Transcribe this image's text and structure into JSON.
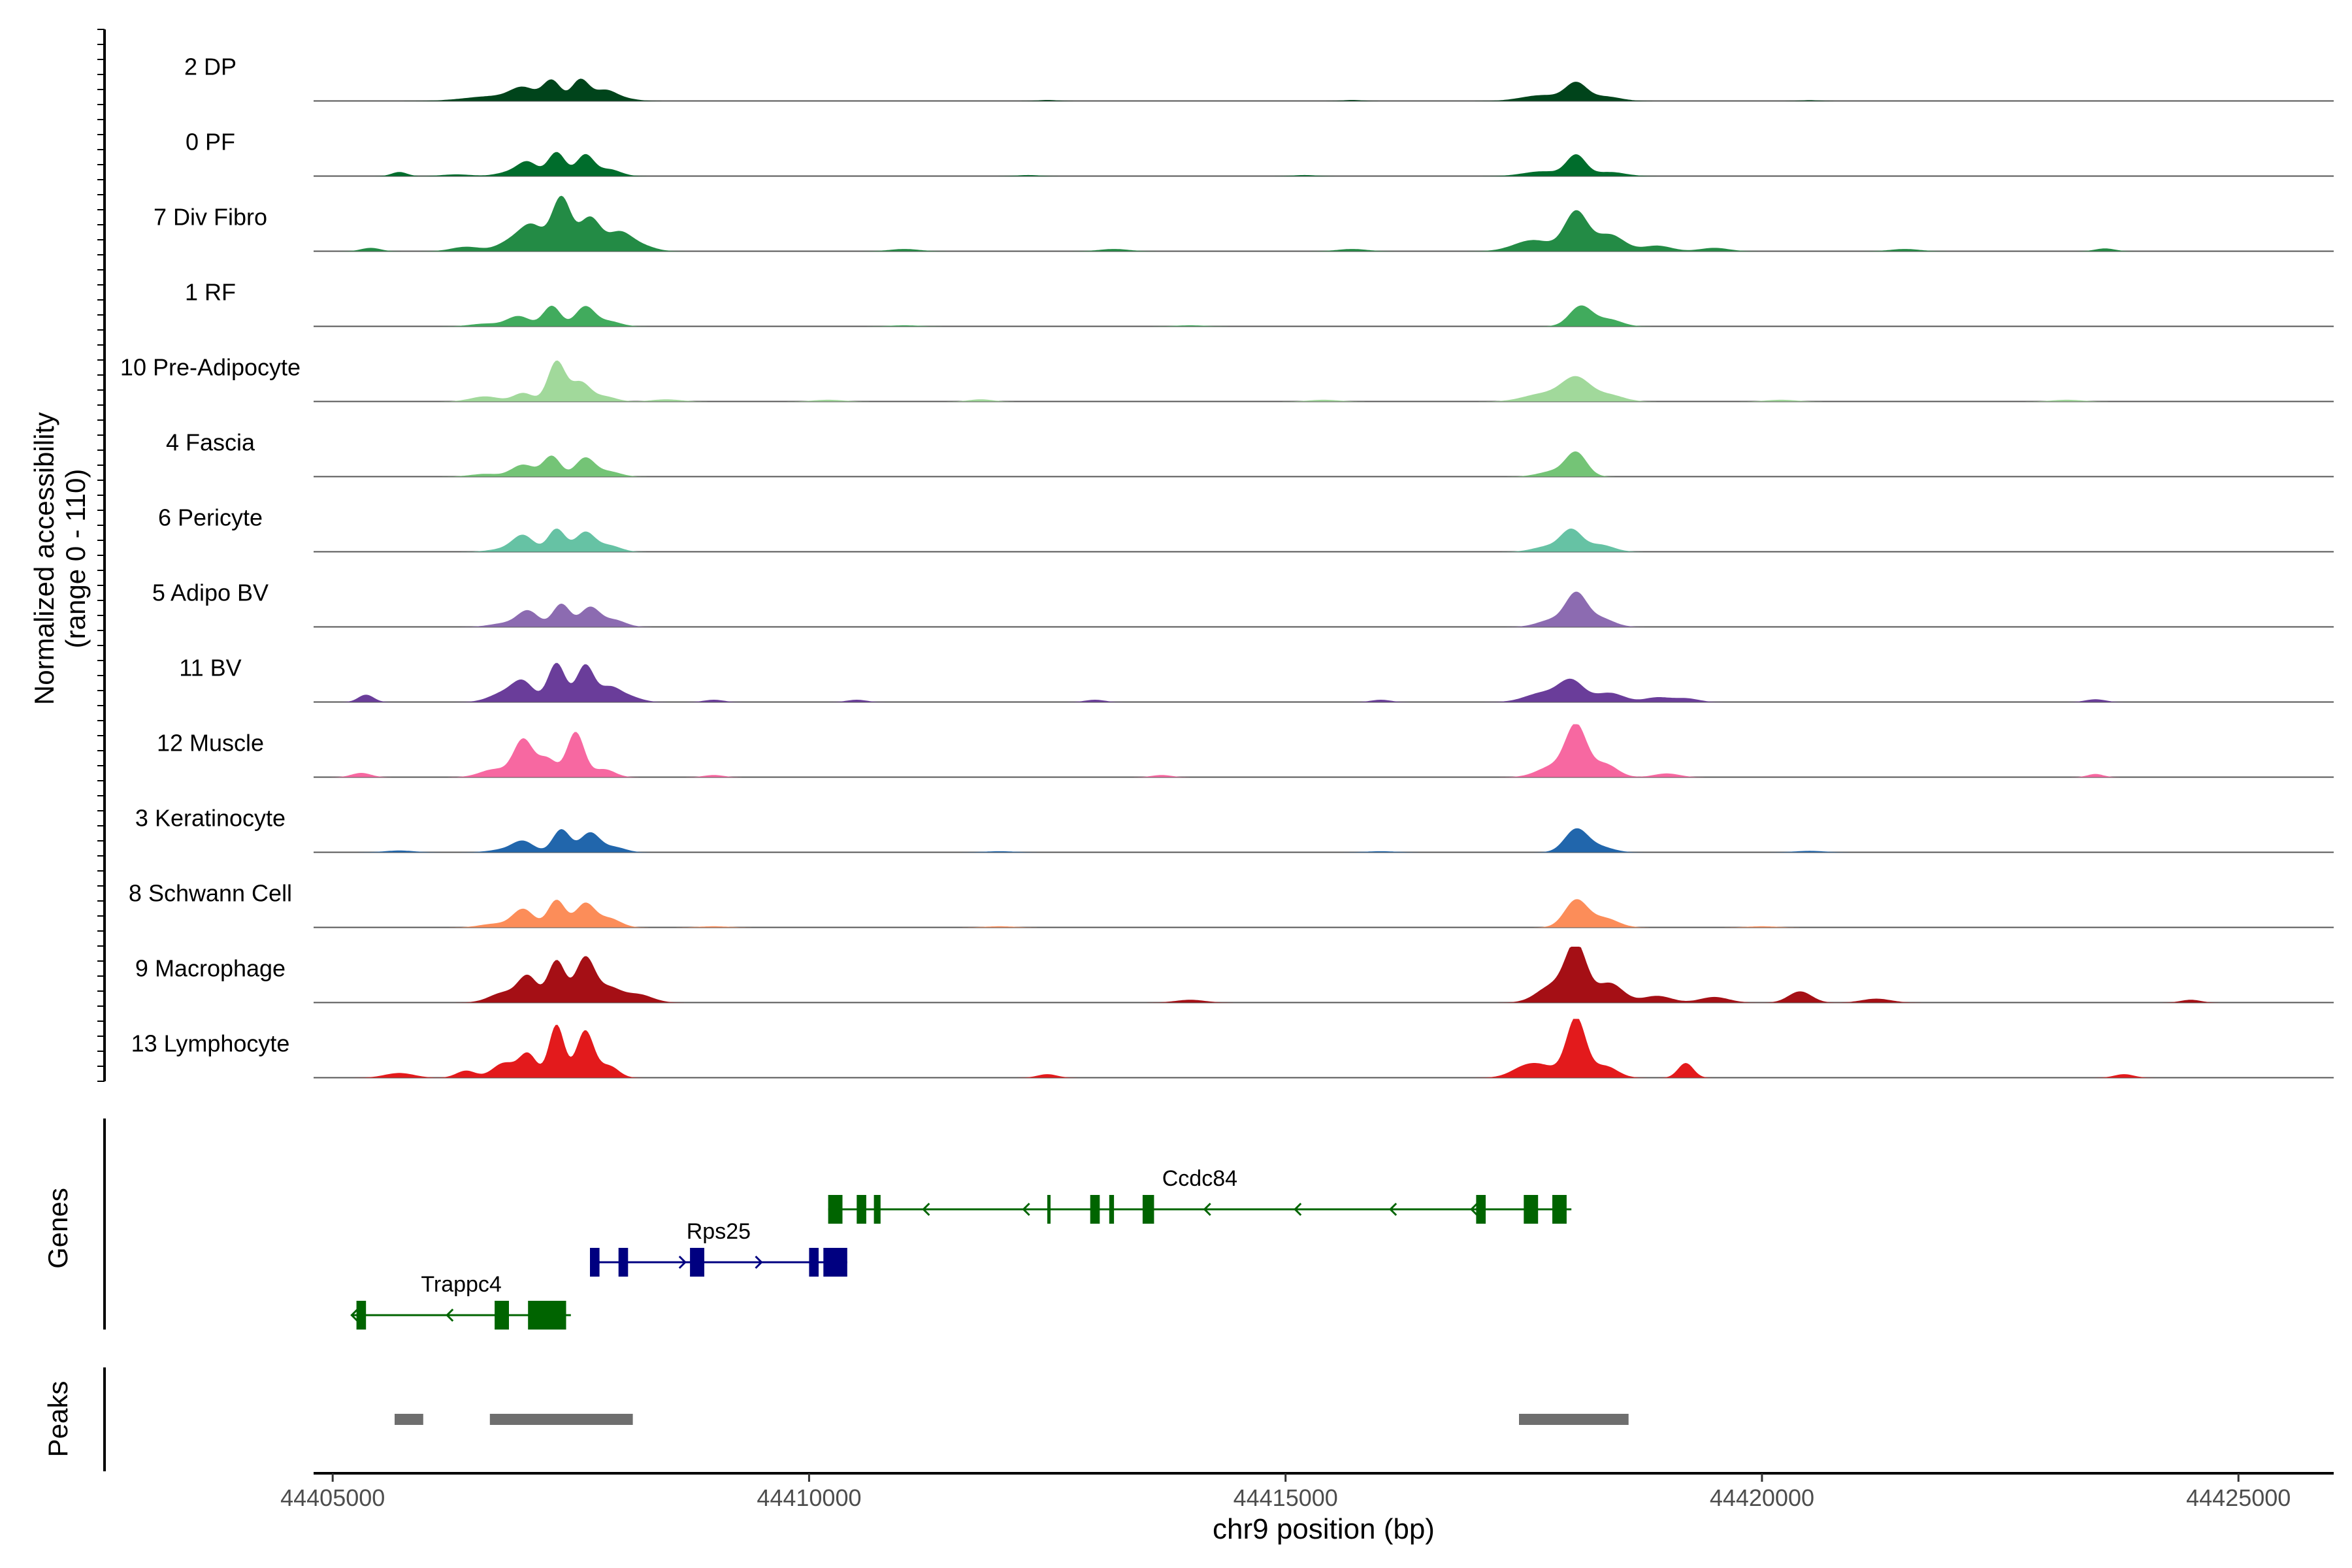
{
  "chart_data": {
    "type": "area",
    "title": "",
    "chromosome": "chr9",
    "xlabel": "chr9 position (bp)",
    "xlim": [
      44404800,
      44426000
    ],
    "xticks": [
      44405000,
      44410000,
      44415000,
      44420000,
      44425000
    ],
    "tick_labels": [
      "44405000",
      "44410000",
      "44415000",
      "44420000",
      "44425000"
    ],
    "ylabel_line1": "Normalized accessibility",
    "ylabel_line2": "(range 0 - 110)",
    "ylim": [
      0,
      110
    ],
    "genes_label": "Genes",
    "peaks_label": "Peaks",
    "series": [
      {
        "name": "2 DP",
        "color": "#00441b",
        "scale": 0.55,
        "peaks": [
          [
            44406700,
            0.15,
            300
          ],
          [
            44407000,
            0.35,
            130
          ],
          [
            44407300,
            0.62,
            90
          ],
          [
            44407600,
            0.66,
            90
          ],
          [
            44407850,
            0.28,
            110
          ],
          [
            44408000,
            0.1,
            150
          ],
          [
            44418050,
            0.52,
            110
          ],
          [
            44417700,
            0.18,
            220
          ],
          [
            44418350,
            0.14,
            160
          ],
          [
            44412500,
            0.03,
            100
          ],
          [
            44415700,
            0.03,
            100
          ],
          [
            44420500,
            0.025,
            100
          ]
        ]
      },
      {
        "name": "0 PF",
        "color": "#006d2c",
        "scale": 0.58,
        "peaks": [
          [
            44405700,
            0.12,
            80
          ],
          [
            44406300,
            0.05,
            150
          ],
          [
            44406900,
            0.14,
            150
          ],
          [
            44407050,
            0.35,
            100
          ],
          [
            44407350,
            0.7,
            90
          ],
          [
            44407650,
            0.62,
            90
          ],
          [
            44407900,
            0.2,
            120
          ],
          [
            44418050,
            0.6,
            100
          ],
          [
            44417700,
            0.14,
            200
          ],
          [
            44418400,
            0.12,
            160
          ],
          [
            44412300,
            0.03,
            120
          ],
          [
            44415200,
            0.03,
            120
          ]
        ]
      },
      {
        "name": "7 Div Fibro",
        "color": "#238b45",
        "scale": 0.95,
        "peaks": [
          [
            44405400,
            0.06,
            100
          ],
          [
            44406400,
            0.08,
            150
          ],
          [
            44406900,
            0.2,
            150
          ],
          [
            44407100,
            0.4,
            120
          ],
          [
            44407400,
            0.96,
            100
          ],
          [
            44407700,
            0.6,
            110
          ],
          [
            44408000,
            0.3,
            120
          ],
          [
            44408200,
            0.12,
            150
          ],
          [
            44418050,
            0.7,
            120
          ],
          [
            44417600,
            0.2,
            200
          ],
          [
            44418400,
            0.3,
            150
          ],
          [
            44418900,
            0.1,
            150
          ],
          [
            44419500,
            0.06,
            150
          ],
          [
            44411000,
            0.04,
            150
          ],
          [
            44413200,
            0.04,
            150
          ],
          [
            44415700,
            0.04,
            150
          ],
          [
            44421500,
            0.04,
            150
          ],
          [
            44423600,
            0.05,
            100
          ]
        ]
      },
      {
        "name": "1 RF",
        "color": "#41ab5d",
        "scale": 0.58,
        "peaks": [
          [
            44406600,
            0.08,
            150
          ],
          [
            44406950,
            0.3,
            120
          ],
          [
            44407300,
            0.6,
            90
          ],
          [
            44407650,
            0.58,
            100
          ],
          [
            44407900,
            0.15,
            120
          ],
          [
            44418100,
            0.6,
            120
          ],
          [
            44418400,
            0.2,
            130
          ],
          [
            44411000,
            0.03,
            150
          ],
          [
            44414000,
            0.03,
            150
          ]
        ]
      },
      {
        "name": "10 Pre-Adipocyte",
        "color": "#a1d99b",
        "scale": 0.72,
        "peaks": [
          [
            44406600,
            0.12,
            150
          ],
          [
            44407000,
            0.2,
            100
          ],
          [
            44407350,
            0.95,
            90
          ],
          [
            44407600,
            0.45,
            100
          ],
          [
            44407850,
            0.12,
            120
          ],
          [
            44408500,
            0.05,
            150
          ],
          [
            44411800,
            0.05,
            120
          ],
          [
            44418050,
            0.55,
            150
          ],
          [
            44417700,
            0.18,
            200
          ],
          [
            44418400,
            0.15,
            150
          ],
          [
            44410200,
            0.04,
            150
          ],
          [
            44415400,
            0.04,
            150
          ],
          [
            44420200,
            0.04,
            150
          ],
          [
            44423200,
            0.04,
            150
          ]
        ]
      },
      {
        "name": "4 Fascia",
        "color": "#74c476",
        "scale": 0.58,
        "peaks": [
          [
            44406600,
            0.08,
            150
          ],
          [
            44407000,
            0.35,
            120
          ],
          [
            44407300,
            0.6,
            90
          ],
          [
            44407650,
            0.55,
            100
          ],
          [
            44407900,
            0.15,
            120
          ],
          [
            44418050,
            0.7,
            110
          ],
          [
            44417800,
            0.15,
            150
          ]
        ]
      },
      {
        "name": "6 Pericyte",
        "color": "#66c2a4",
        "scale": 0.6,
        "peaks": [
          [
            44406800,
            0.08,
            150
          ],
          [
            44407000,
            0.45,
            110
          ],
          [
            44407350,
            0.65,
            90
          ],
          [
            44407650,
            0.55,
            100
          ],
          [
            44407900,
            0.18,
            120
          ],
          [
            44418000,
            0.6,
            110
          ],
          [
            44418300,
            0.2,
            140
          ],
          [
            44417750,
            0.15,
            150
          ]
        ]
      },
      {
        "name": "5 Adipo BV",
        "color": "#8c6bb1",
        "scale": 0.6,
        "peaks": [
          [
            44406800,
            0.1,
            150
          ],
          [
            44407050,
            0.45,
            110
          ],
          [
            44407400,
            0.65,
            90
          ],
          [
            44407700,
            0.55,
            100
          ],
          [
            44407950,
            0.2,
            120
          ],
          [
            44418050,
            0.9,
            110
          ],
          [
            44418300,
            0.25,
            140
          ],
          [
            44417800,
            0.2,
            150
          ]
        ]
      },
      {
        "name": "11 BV",
        "color": "#6a3d9a",
        "scale": 0.78,
        "peaks": [
          [
            44405350,
            0.16,
            80
          ],
          [
            44406800,
            0.2,
            150
          ],
          [
            44407000,
            0.4,
            110
          ],
          [
            44407350,
            0.85,
            90
          ],
          [
            44407650,
            0.8,
            90
          ],
          [
            44407900,
            0.3,
            110
          ],
          [
            44408100,
            0.12,
            130
          ],
          [
            44418000,
            0.45,
            130
          ],
          [
            44417700,
            0.2,
            180
          ],
          [
            44418400,
            0.2,
            150
          ],
          [
            44418900,
            0.1,
            130
          ],
          [
            44419200,
            0.08,
            130
          ],
          [
            44409000,
            0.05,
            100
          ],
          [
            44410500,
            0.05,
            100
          ],
          [
            44413000,
            0.05,
            100
          ],
          [
            44416000,
            0.05,
            100
          ],
          [
            44423500,
            0.06,
            100
          ]
        ]
      },
      {
        "name": "12 Muscle",
        "color": "#f768a1",
        "scale": 0.9,
        "peaks": [
          [
            44405300,
            0.08,
            100
          ],
          [
            44406700,
            0.15,
            150
          ],
          [
            44407000,
            0.7,
            100
          ],
          [
            44407250,
            0.35,
            100
          ],
          [
            44407550,
            0.85,
            90
          ],
          [
            44407850,
            0.15,
            110
          ],
          [
            44418050,
            0.95,
            110
          ],
          [
            44417800,
            0.2,
            160
          ],
          [
            44418350,
            0.25,
            130
          ],
          [
            44419000,
            0.07,
            130
          ],
          [
            44409000,
            0.04,
            100
          ],
          [
            44413700,
            0.04,
            100
          ],
          [
            44423500,
            0.06,
            80
          ]
        ]
      },
      {
        "name": "3 Keratinocyte",
        "color": "#2166ac",
        "scale": 0.6,
        "peaks": [
          [
            44405700,
            0.05,
            150
          ],
          [
            44406800,
            0.08,
            150
          ],
          [
            44407000,
            0.3,
            110
          ],
          [
            44407400,
            0.65,
            90
          ],
          [
            44407700,
            0.55,
            100
          ],
          [
            44407950,
            0.15,
            120
          ],
          [
            44418050,
            0.65,
            120
          ],
          [
            44418300,
            0.15,
            140
          ],
          [
            44412000,
            0.03,
            150
          ],
          [
            44416000,
            0.03,
            150
          ],
          [
            44420500,
            0.04,
            150
          ]
        ]
      },
      {
        "name": "8 Schwann Cell",
        "color": "#fc8d59",
        "scale": 0.62,
        "peaks": [
          [
            44406700,
            0.1,
            150
          ],
          [
            44407000,
            0.5,
            110
          ],
          [
            44407350,
            0.75,
            90
          ],
          [
            44407650,
            0.65,
            100
          ],
          [
            44407900,
            0.25,
            120
          ],
          [
            44418050,
            0.75,
            120
          ],
          [
            44418350,
            0.25,
            140
          ],
          [
            44409000,
            0.03,
            150
          ],
          [
            44412000,
            0.03,
            150
          ],
          [
            44420000,
            0.03,
            150
          ]
        ]
      },
      {
        "name": "9 Macrophage",
        "color": "#a50f15",
        "scale": 0.95,
        "peaks": [
          [
            44406800,
            0.18,
            150
          ],
          [
            44407050,
            0.45,
            100
          ],
          [
            44407350,
            0.75,
            90
          ],
          [
            44407650,
            0.8,
            100
          ],
          [
            44407900,
            0.25,
            120
          ],
          [
            44408200,
            0.15,
            150
          ],
          [
            44418050,
            1.0,
            110
          ],
          [
            44417800,
            0.3,
            160
          ],
          [
            44418400,
            0.35,
            140
          ],
          [
            44418900,
            0.12,
            150
          ],
          [
            44419500,
            0.1,
            150
          ],
          [
            44420400,
            0.2,
            120
          ],
          [
            44421200,
            0.07,
            150
          ],
          [
            44414000,
            0.05,
            150
          ],
          [
            44424500,
            0.05,
            100
          ]
        ]
      },
      {
        "name": "13 Lymphocyte",
        "color": "#e31a1c",
        "scale": 1.0,
        "peaks": [
          [
            44405700,
            0.08,
            150
          ],
          [
            44406400,
            0.12,
            100
          ],
          [
            44406800,
            0.25,
            120
          ],
          [
            44407050,
            0.4,
            90
          ],
          [
            44407350,
            0.9,
            80
          ],
          [
            44407650,
            0.8,
            90
          ],
          [
            44407900,
            0.2,
            100
          ],
          [
            44418050,
            1.0,
            100
          ],
          [
            44417700,
            0.18,
            180
          ],
          [
            44417500,
            0.12,
            150
          ],
          [
            44418350,
            0.2,
            130
          ],
          [
            44419200,
            0.25,
            80
          ],
          [
            44412500,
            0.06,
            100
          ],
          [
            44423800,
            0.06,
            100
          ]
        ]
      }
    ],
    "genes": [
      {
        "name": "Ccdc84",
        "start": 44410200,
        "end": 44418000,
        "strand": "-",
        "row": 0,
        "color": "#006400",
        "exons": [
          [
            44410200,
            44410350
          ],
          [
            44410500,
            44410600
          ],
          [
            44410680,
            44410750
          ],
          [
            44412500,
            44412520
          ],
          [
            44412950,
            44413050
          ],
          [
            44413150,
            44413200
          ],
          [
            44413500,
            44413620
          ],
          [
            44417000,
            44417100
          ],
          [
            44417500,
            44417650
          ],
          [
            44417800,
            44417950
          ]
        ],
        "arrows": [
          44411200,
          44412250,
          44414150,
          44415100,
          44416100,
          44416950
        ]
      },
      {
        "name": "Rps25",
        "start": 44407700,
        "end": 44410400,
        "strand": "+",
        "row": 1,
        "color": "#000080",
        "exons": [
          [
            44407700,
            44407800
          ],
          [
            44408000,
            44408100
          ],
          [
            44408750,
            44408900
          ],
          [
            44410000,
            44410100
          ],
          [
            44410150,
            44410400
          ]
        ],
        "arrows": [
          44407800,
          44408700,
          44409500
        ]
      },
      {
        "name": "Trappc4",
        "start": 44405200,
        "end": 44407500,
        "strand": "-",
        "row": 2,
        "color": "#006400",
        "exons": [
          [
            44405250,
            44405350
          ],
          [
            44406700,
            44406850
          ],
          [
            44407050,
            44407450
          ]
        ],
        "arrows": [
          44405200,
          44406200
        ]
      }
    ],
    "peaks_regions": [
      [
        44405650,
        44405950
      ],
      [
        44406650,
        44408150
      ],
      [
        44417450,
        44418600
      ]
    ]
  }
}
